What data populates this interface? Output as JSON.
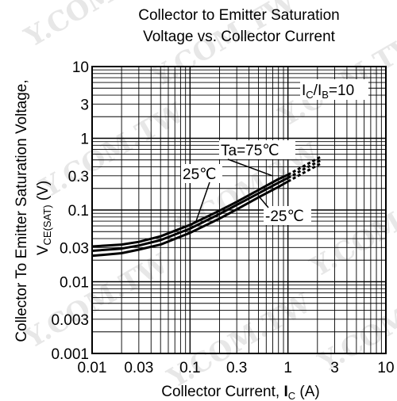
{
  "chart_data": {
    "type": "line",
    "title_line1": "Collector to Emitter Saturation",
    "title_line2": "Voltage vs.  Collector Current",
    "xlabel_text": "Collector Current, ",
    "xlabel_sym": "I",
    "xlabel_sub": "C",
    "xlabel_unit": " (A)",
    "ylabel_text": "Collector To Emitter Saturation Voltage,",
    "ylabel_sym": "V",
    "ylabel_sub": "CE(SAT)",
    "ylabel_unit": " (V)",
    "x_scale": "log",
    "y_scale": "log",
    "xlim": [
      0.01,
      10
    ],
    "ylim": [
      0.001,
      10
    ],
    "x_ticks": [
      "0.01",
      "0.03",
      "0.1",
      "0.3",
      "1",
      "3",
      "10"
    ],
    "x_tick_values": [
      0.01,
      0.03,
      0.1,
      0.3,
      1,
      3,
      10
    ],
    "y_ticks": [
      "0.001",
      "0.003",
      "0.01",
      "0.03",
      "0.1",
      "0.3",
      "1",
      "3",
      "10"
    ],
    "y_tick_values": [
      0.001,
      0.003,
      0.01,
      0.03,
      0.1,
      0.3,
      1,
      3,
      10
    ],
    "grid": true,
    "condition": {
      "sym1": "I",
      "sub1": "C",
      "slash": "/",
      "sym2": "I",
      "sub2": "B",
      "value": "=10"
    },
    "series": [
      {
        "label": "Ta=75℃",
        "x": [
          0.01,
          0.02,
          0.03,
          0.05,
          0.1,
          0.2,
          0.3,
          0.5,
          0.8,
          1.0
        ],
        "y": [
          0.031,
          0.033,
          0.036,
          0.043,
          0.062,
          0.098,
          0.13,
          0.19,
          0.27,
          0.31
        ],
        "ext_x": [
          1.0,
          1.5,
          2.2
        ],
        "ext_y": [
          0.31,
          0.42,
          0.56
        ]
      },
      {
        "label": "25℃",
        "x": [
          0.01,
          0.02,
          0.03,
          0.05,
          0.1,
          0.2,
          0.3,
          0.5,
          0.8,
          1.0
        ],
        "y": [
          0.027,
          0.029,
          0.032,
          0.038,
          0.055,
          0.088,
          0.118,
          0.17,
          0.24,
          0.28
        ],
        "ext_x": [
          1.0,
          1.5,
          2.2
        ],
        "ext_y": [
          0.28,
          0.38,
          0.5
        ]
      },
      {
        "label": "-25℃",
        "x": [
          0.01,
          0.02,
          0.03,
          0.05,
          0.1,
          0.2,
          0.3,
          0.5,
          0.8,
          1.0
        ],
        "y": [
          0.023,
          0.025,
          0.028,
          0.033,
          0.048,
          0.076,
          0.102,
          0.15,
          0.21,
          0.25
        ],
        "ext_x": [
          1.0,
          1.5,
          2.2
        ],
        "ext_y": [
          0.25,
          0.34,
          0.45
        ]
      }
    ]
  }
}
